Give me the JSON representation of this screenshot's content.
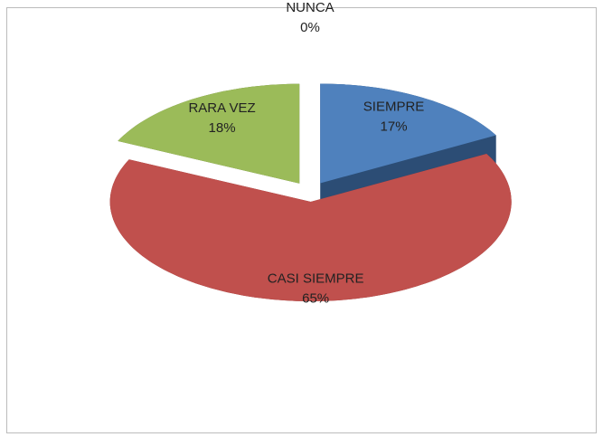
{
  "chart_data": {
    "type": "pie",
    "categories": [
      "SIEMPRE",
      "CASI SIEMPRE",
      "RARA VEZ",
      "NUNCA"
    ],
    "values": [
      17,
      65,
      18,
      0
    ],
    "value_labels": [
      "17%",
      "65%",
      "18%",
      "0%"
    ],
    "colors": [
      "#4f81bd",
      "#c0504d",
      "#9bbb59",
      "#ffffff"
    ],
    "side_colors": [
      "#2c4d75",
      "#772c2a",
      "#4f6228",
      "#cccccc"
    ]
  }
}
